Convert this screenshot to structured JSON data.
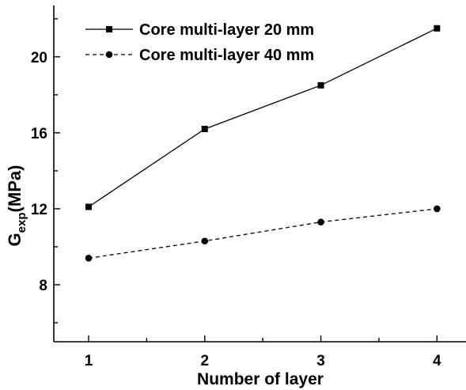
{
  "chart_data": {
    "type": "line",
    "xlabel": "Number of layer",
    "ylabel": {
      "main": "G",
      "subscript": "exp",
      "unit": "(MPa)"
    },
    "x": [
      1,
      2,
      3,
      4
    ],
    "xticks": [
      "1",
      "2",
      "3",
      "4"
    ],
    "xlim": [
      0.7,
      4.25
    ],
    "ylim": [
      5,
      22.7
    ],
    "yticks": [
      "8",
      "12",
      "16",
      "20"
    ],
    "ytick_values": [
      8,
      12,
      16,
      20
    ],
    "grid": false,
    "legend_position": "top-left",
    "series": [
      {
        "name": "Core multi-layer 20 mm",
        "values": [
          12.1,
          16.2,
          18.5,
          21.5
        ],
        "marker": "square",
        "line_style": "solid",
        "color": "#000000"
      },
      {
        "name": "Core multi-layer 40 mm",
        "values": [
          9.4,
          10.3,
          11.3,
          12.0
        ],
        "marker": "circle",
        "line_style": "dashed",
        "color": "#000000"
      }
    ]
  }
}
